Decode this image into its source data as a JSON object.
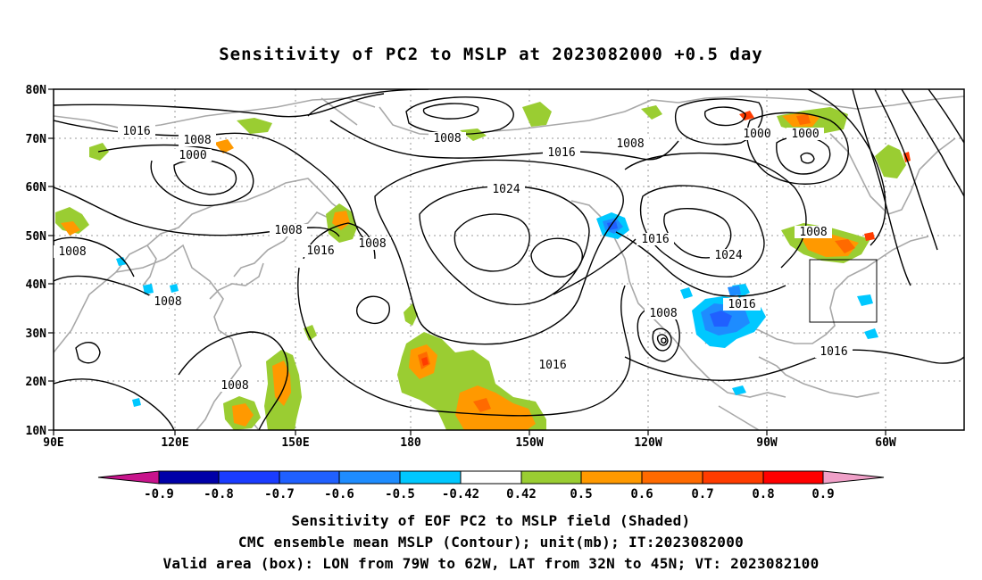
{
  "title": "Sensitivity of PC2 to MSLP at 2023082000 +0.5 day",
  "map": {
    "lat_labels": [
      "80N",
      "70N",
      "60N",
      "50N",
      "40N",
      "30N",
      "20N",
      "10N"
    ],
    "lon_labels": [
      "90E",
      "120E",
      "150E",
      "180",
      "150W",
      "120W",
      "90W",
      "60W"
    ],
    "contour_labels": [
      {
        "text": "1016",
        "name": "contour-label-1016-nw"
      },
      {
        "text": "1008",
        "name": "contour-label-1008-siberia"
      },
      {
        "text": "1000",
        "name": "contour-label-1000-siberia"
      },
      {
        "text": "1008",
        "name": "contour-label-1008-arctic"
      },
      {
        "text": "1008",
        "name": "contour-label-1008-canada"
      },
      {
        "text": "1000",
        "name": "contour-label-1000-canada-a"
      },
      {
        "text": "1000",
        "name": "contour-label-1000-canada-b"
      },
      {
        "text": "1016",
        "name": "contour-label-1016-north-pacific"
      },
      {
        "text": "1024",
        "name": "contour-label-1024-pacific-high"
      },
      {
        "text": "1008",
        "name": "contour-label-1008-japan"
      },
      {
        "text": "1016",
        "name": "contour-label-1016-westpac"
      },
      {
        "text": "1008",
        "name": "contour-label-1008-kamchatka"
      },
      {
        "text": "1008",
        "name": "contour-label-1008-west"
      },
      {
        "text": "1008",
        "name": "contour-label-1008-china"
      },
      {
        "text": "1016",
        "name": "contour-label-1016-west-coast"
      },
      {
        "text": "1024",
        "name": "contour-label-1024-us"
      },
      {
        "text": "1008",
        "name": "contour-label-1008-hurricane"
      },
      {
        "text": "1016",
        "name": "contour-label-1016-gulf"
      },
      {
        "text": "1016",
        "name": "contour-label-1016-subtropic"
      },
      {
        "text": "1008",
        "name": "contour-label-1008-atlantic"
      },
      {
        "text": "1016",
        "name": "contour-label-1016-atlantic"
      },
      {
        "text": "1008",
        "name": "contour-label-1008-philippines"
      }
    ]
  },
  "colorbar": {
    "labels": [
      "-0.9",
      "-0.8",
      "-0.7",
      "-0.6",
      "-0.5",
      "-0.42",
      "0.42",
      "0.5",
      "0.6",
      "0.7",
      "0.8",
      "0.9"
    ],
    "colors": [
      "#0000a8",
      "#1a3cff",
      "#2060ff",
      "#1e8cff",
      "#00c8ff",
      "#ffffff",
      "#9acd32",
      "#ff9900",
      "#ff6a00",
      "#ff3c00",
      "#ff0000"
    ],
    "low_end_color": "#c8148c",
    "high_end_color": "#f0a0c8"
  },
  "caption": {
    "line1": "Sensitivity of EOF PC2 to MSLP field (Shaded)",
    "line2": "CMC ensemble mean MSLP (Contour); unit(mb); IT:2023082000",
    "line3": "Valid area (box): LON from 79W to 62W, LAT from 32N to 45N; VT: 2023082100"
  }
}
